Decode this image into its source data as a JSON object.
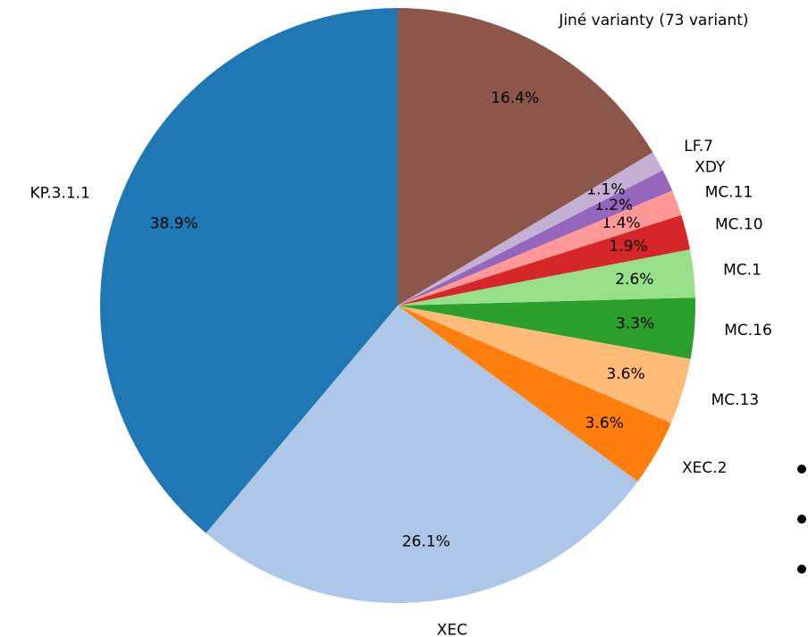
{
  "chart_data": {
    "type": "pie",
    "categories": [
      "KP.3.1.1",
      "XEC",
      "XEC.2",
      "MC.13",
      "MC.16",
      "MC.1",
      "MC.10",
      "MC.11",
      "XDY",
      "LF.7",
      "Jiné varianty (73 variant)"
    ],
    "values": [
      38.9,
      26.1,
      3.6,
      3.6,
      3.3,
      2.6,
      1.9,
      1.4,
      1.2,
      1.1,
      16.4
    ],
    "value_labels": [
      "38.9%",
      "26.1%",
      "3.6%",
      "3.6%",
      "3.3%",
      "2.6%",
      "1.9%",
      "1.4%",
      "1.2%",
      "1.1%",
      "16.4%"
    ],
    "colors": [
      "#1f77b4",
      "#aec7e8",
      "#ff7f0e",
      "#ffbb78",
      "#2ca02c",
      "#98df8a",
      "#d62728",
      "#ff9896",
      "#9467bd",
      "#c5b0d5",
      "#8c564b"
    ]
  }
}
